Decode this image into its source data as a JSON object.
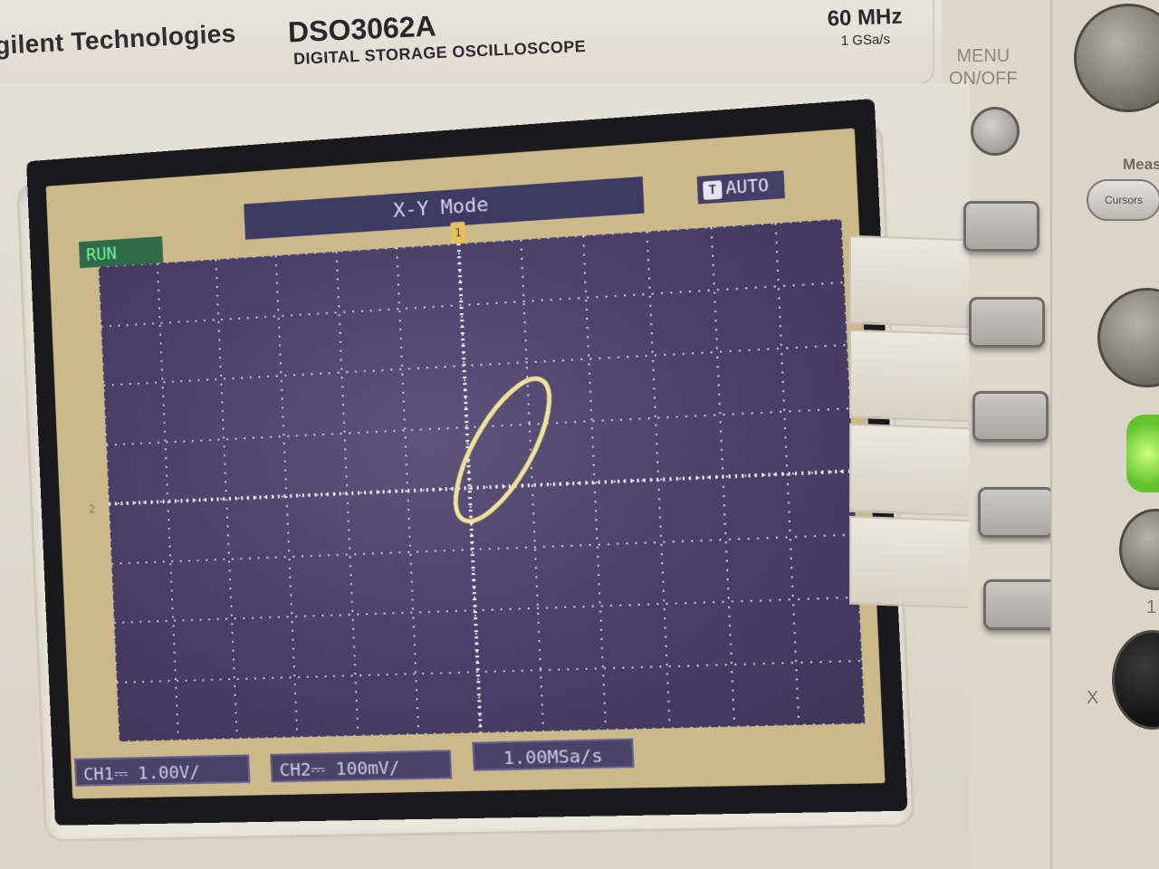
{
  "header": {
    "brand": "gilent Technologies",
    "model": "DSO3062A",
    "subtitle": "DIGITAL STORAGE OSCILLOSCOPE",
    "bandwidth": "60 MHz",
    "sample_rate_spec": "1 GSa/s"
  },
  "screen": {
    "mode_title": "X-Y Mode",
    "trigger_mode": "AUTO",
    "trigger_icon": "T",
    "run_state": "RUN",
    "ch2_marker": "2",
    "trig_marker": "1",
    "ch1_scale": "CH1⎓ 1.00V/",
    "ch2_scale": "CH2⎓ 100mV/",
    "sample_rate": "1.00MSa/s",
    "colors": {
      "grid_bg": "#4a3f68",
      "trace": "#efe39a",
      "run": "#6ff29a"
    }
  },
  "panel": {
    "menu_label_1": "MENU",
    "menu_label_2": "ON/OFF",
    "meas_label": "Meas",
    "cursors_label": "Cursors",
    "side_label_x": "X",
    "side_label_1": "1"
  }
}
